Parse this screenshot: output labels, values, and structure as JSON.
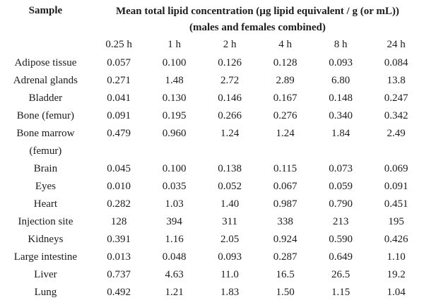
{
  "table": {
    "sample_header": "Sample",
    "main_header_line1": "Mean total lipid concentration (µg lipid equivalent / g (or mL))",
    "main_header_line2": "(males and females combined)",
    "time_headers": [
      "0.25 h",
      "1 h",
      "2 h",
      "4 h",
      "8 h",
      "24 h"
    ],
    "rows": [
      {
        "sample": "Adipose tissue",
        "values": [
          "0.057",
          "0.100",
          "0.126",
          "0.128",
          "0.093",
          "0.084"
        ]
      },
      {
        "sample": "Adrenal glands",
        "values": [
          "0.271",
          "1.48",
          "2.72",
          "2.89",
          "6.80",
          "13.8"
        ]
      },
      {
        "sample": "Bladder",
        "values": [
          "0.041",
          "0.130",
          "0.146",
          "0.167",
          "0.148",
          "0.247"
        ]
      },
      {
        "sample": "Bone (femur)",
        "values": [
          "0.091",
          "0.195",
          "0.266",
          "0.276",
          "0.340",
          "0.342"
        ]
      },
      {
        "sample": "Bone marrow (femur)",
        "values": [
          "0.479",
          "0.960",
          "1.24",
          "1.24",
          "1.84",
          "2.49"
        ]
      },
      {
        "sample": "Brain",
        "values": [
          "0.045",
          "0.100",
          "0.138",
          "0.115",
          "0.073",
          "0.069"
        ]
      },
      {
        "sample": "Eyes",
        "values": [
          "0.010",
          "0.035",
          "0.052",
          "0.067",
          "0.059",
          "0.091"
        ]
      },
      {
        "sample": "Heart",
        "values": [
          "0.282",
          "1.03",
          "1.40",
          "0.987",
          "0.790",
          "0.451"
        ]
      },
      {
        "sample": "Injection site",
        "values": [
          "128",
          "394",
          "311",
          "338",
          "213",
          "195"
        ]
      },
      {
        "sample": "Kidneys",
        "values": [
          "0.391",
          "1.16",
          "2.05",
          "0.924",
          "0.590",
          "0.426"
        ]
      },
      {
        "sample": "Large intestine",
        "values": [
          "0.013",
          "0.048",
          "0.093",
          "0.287",
          "0.649",
          "1.10"
        ]
      },
      {
        "sample": "Liver",
        "values": [
          "0.737",
          "4.63",
          "11.0",
          "16.5",
          "26.5",
          "19.2"
        ]
      },
      {
        "sample": "Lung",
        "values": [
          "0.492",
          "1.21",
          "1.83",
          "1.50",
          "1.15",
          "1.04"
        ]
      }
    ]
  }
}
